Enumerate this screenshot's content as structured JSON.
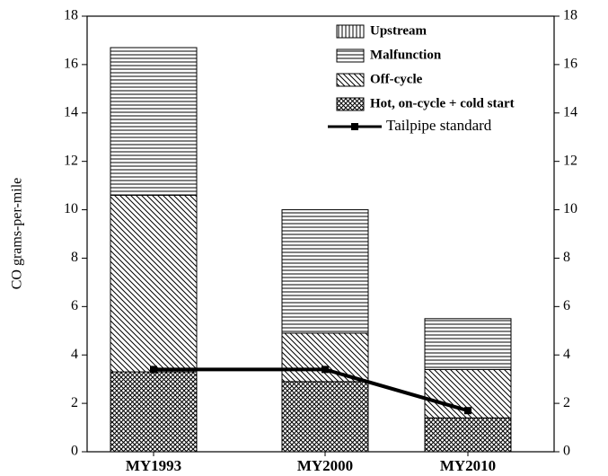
{
  "chart_data": {
    "type": "bar",
    "stacked": true,
    "categories": [
      "MY1993",
      "MY2000",
      "MY2010"
    ],
    "ylabel": "CO grams-per-mile",
    "series": [
      {
        "name": "Hot, on-cycle + cold start",
        "color": "#000000",
        "hatch": "crosshatch",
        "values": [
          3.3,
          2.9,
          1.4
        ]
      },
      {
        "name": "Off-cycle",
        "color": "#000000",
        "hatch": "diagonal",
        "values": [
          7.3,
          2.0,
          2.0
        ]
      },
      {
        "name": "Malfunction",
        "color": "#000000",
        "hatch": "horizontal",
        "values": [
          6.1,
          5.1,
          2.1
        ]
      },
      {
        "name": "Upstream",
        "color": "#000000",
        "hatch": "vertical",
        "values": [
          0,
          0,
          0
        ]
      }
    ],
    "lines": [
      {
        "name": "Tailpipe standard",
        "color": "#000000",
        "values": [
          3.4,
          3.4,
          1.7
        ]
      }
    ],
    "ylim": [
      0,
      18
    ],
    "yticks": [
      0,
      2,
      4,
      6,
      8,
      10,
      12,
      14,
      16,
      18
    ],
    "y2lim": [
      0,
      18
    ],
    "y2ticks": [
      0,
      2,
      4,
      6,
      8,
      10,
      12,
      14,
      16,
      18
    ],
    "legend": "upper right"
  }
}
